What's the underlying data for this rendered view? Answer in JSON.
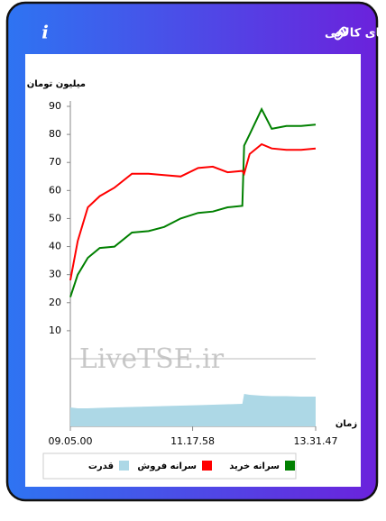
{
  "header": {
    "title": "سرانه ی خرید و فروش حقیقی در صندوق های کالایی",
    "info_icon": "i"
  },
  "chart_data": {
    "type": "line",
    "y_label": "میلیون تومان",
    "x_label": "زمان",
    "watermark": "LiveTSE.ir",
    "x": [
      "09.05.00",
      "09.13.00",
      "09.24.00",
      "09.37.00",
      "09.53.00",
      "10.12.00",
      "10.30.00",
      "10.47.00",
      "11.05.00",
      "11.24.00",
      "11.40.00",
      "11.56.00",
      "12.12.00",
      "12.14.00",
      "12.20.00",
      "12.33.00",
      "12.44.00",
      "13.00.00",
      "13.16.00",
      "13.31.47"
    ],
    "xlim": [
      "09.05.00",
      "13.31.47"
    ],
    "xticks": [
      "09.05.00",
      "11.17.58",
      "13.31.47"
    ],
    "ylim": [
      0,
      90
    ],
    "yticks": [
      10,
      20,
      30,
      40,
      50,
      60,
      70,
      80,
      90
    ],
    "y2lim": [
      0,
      10
    ],
    "series": [
      {
        "name": "سرانه خرید",
        "color": "#008000",
        "values": [
          22,
          30,
          36,
          39.5,
          40,
          45,
          45.5,
          47,
          50,
          52,
          52.5,
          54,
          54.5,
          76,
          80,
          89,
          82,
          83,
          83,
          83.5
        ]
      },
      {
        "name": "سرانه فروش",
        "color": "#ff0000",
        "values": [
          28,
          42,
          54,
          58,
          61,
          66,
          66,
          65.5,
          65,
          68,
          68.5,
          66.5,
          67,
          66,
          73,
          76.5,
          75,
          74.5,
          74.5,
          75
        ]
      },
      {
        "name": "قدرت",
        "color": "#add8e6",
        "axis": "y2",
        "values": [
          4.2,
          4.0,
          4.0,
          4.1,
          4.2,
          4.3,
          4.4,
          4.5,
          4.6,
          4.7,
          4.8,
          4.9,
          5.0,
          7.2,
          7.0,
          6.8,
          6.7,
          6.7,
          6.6,
          6.6
        ]
      }
    ]
  }
}
